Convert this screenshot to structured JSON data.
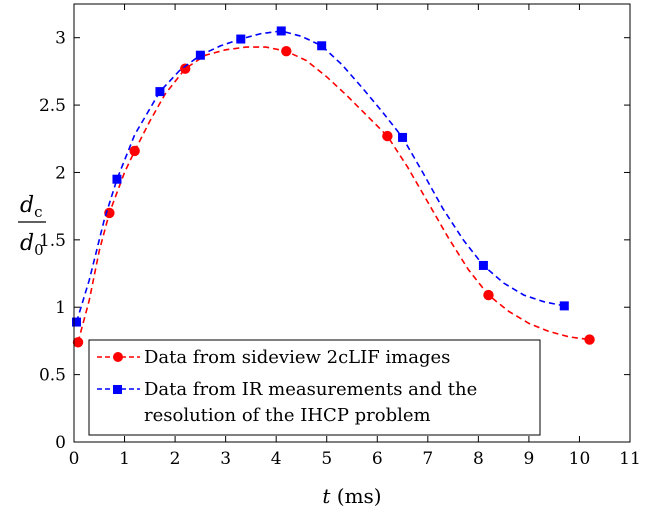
{
  "chart_data": {
    "type": "line",
    "xlabel_var": "t",
    "xlabel_unit": " (ms)",
    "ylabel": {
      "num_var": "d",
      "num_sub": "c",
      "den_var": "d",
      "den_sub": "0"
    },
    "xlim": [
      0,
      11
    ],
    "ylim": [
      0,
      3.25
    ],
    "xticks": [
      0,
      1,
      2,
      3,
      4,
      5,
      6,
      7,
      8,
      9,
      10,
      11
    ],
    "yticks": [
      0,
      0.5,
      1,
      1.5,
      2,
      2.5,
      3
    ],
    "xtick_labels": [
      "0",
      "1",
      "2",
      "3",
      "4",
      "5",
      "6",
      "7",
      "8",
      "9",
      "10",
      "11"
    ],
    "ytick_labels": [
      "0",
      "0.5",
      "1",
      "1.5",
      "2",
      "2.5",
      "3"
    ],
    "grid": false,
    "legend_position": "bottom-left",
    "series": [
      {
        "name": "Data from sideview 2cLIF images",
        "color": "#ff0000",
        "marker": "circle",
        "line_style": "dashed",
        "points": [
          {
            "x": 0.08,
            "y": 0.74
          },
          {
            "x": 0.7,
            "y": 1.7
          },
          {
            "x": 1.2,
            "y": 2.16
          },
          {
            "x": 2.2,
            "y": 2.77
          },
          {
            "x": 4.2,
            "y": 2.9
          },
          {
            "x": 6.2,
            "y": 2.27
          },
          {
            "x": 8.2,
            "y": 1.09
          },
          {
            "x": 10.2,
            "y": 0.76
          }
        ],
        "fit": [
          [
            0.08,
            0.74
          ],
          [
            0.3,
            1.05
          ],
          [
            0.5,
            1.42
          ],
          [
            0.7,
            1.7
          ],
          [
            1.0,
            2.0
          ],
          [
            1.2,
            2.16
          ],
          [
            1.5,
            2.38
          ],
          [
            1.8,
            2.58
          ],
          [
            2.2,
            2.77
          ],
          [
            2.6,
            2.87
          ],
          [
            3.0,
            2.91
          ],
          [
            3.4,
            2.93
          ],
          [
            3.8,
            2.93
          ],
          [
            4.2,
            2.9
          ],
          [
            4.6,
            2.83
          ],
          [
            5.0,
            2.71
          ],
          [
            5.4,
            2.57
          ],
          [
            5.8,
            2.42
          ],
          [
            6.2,
            2.27
          ],
          [
            6.6,
            2.04
          ],
          [
            7.0,
            1.78
          ],
          [
            7.4,
            1.52
          ],
          [
            7.8,
            1.28
          ],
          [
            8.2,
            1.09
          ],
          [
            8.6,
            0.97
          ],
          [
            9.0,
            0.88
          ],
          [
            9.4,
            0.82
          ],
          [
            9.8,
            0.78
          ],
          [
            10.2,
            0.76
          ]
        ]
      },
      {
        "name": "Data from IR measurements and the resolution of the IHCP problem",
        "name_line1": "Data from IR measurements and the",
        "name_line2": "resolution of the IHCP problem",
        "color": "#0000ff",
        "marker": "square",
        "line_style": "dashed",
        "points": [
          {
            "x": 0.05,
            "y": 0.89
          },
          {
            "x": 0.85,
            "y": 1.95
          },
          {
            "x": 1.7,
            "y": 2.6
          },
          {
            "x": 2.5,
            "y": 2.87
          },
          {
            "x": 3.3,
            "y": 2.99
          },
          {
            "x": 4.1,
            "y": 3.05
          },
          {
            "x": 4.9,
            "y": 2.94
          },
          {
            "x": 6.5,
            "y": 2.26
          },
          {
            "x": 8.1,
            "y": 1.31
          },
          {
            "x": 9.7,
            "y": 1.01
          }
        ],
        "fit": [
          [
            0.05,
            0.89
          ],
          [
            0.3,
            1.2
          ],
          [
            0.6,
            1.65
          ],
          [
            0.85,
            1.95
          ],
          [
            1.2,
            2.28
          ],
          [
            1.7,
            2.6
          ],
          [
            2.1,
            2.76
          ],
          [
            2.5,
            2.87
          ],
          [
            2.9,
            2.94
          ],
          [
            3.3,
            2.99
          ],
          [
            3.7,
            3.03
          ],
          [
            4.1,
            3.05
          ],
          [
            4.5,
            3.01
          ],
          [
            4.9,
            2.94
          ],
          [
            5.3,
            2.8
          ],
          [
            5.7,
            2.63
          ],
          [
            6.1,
            2.45
          ],
          [
            6.5,
            2.26
          ],
          [
            6.9,
            2.0
          ],
          [
            7.3,
            1.73
          ],
          [
            7.7,
            1.5
          ],
          [
            8.1,
            1.31
          ],
          [
            8.5,
            1.18
          ],
          [
            8.9,
            1.09
          ],
          [
            9.3,
            1.04
          ],
          [
            9.7,
            1.01
          ]
        ]
      }
    ]
  }
}
